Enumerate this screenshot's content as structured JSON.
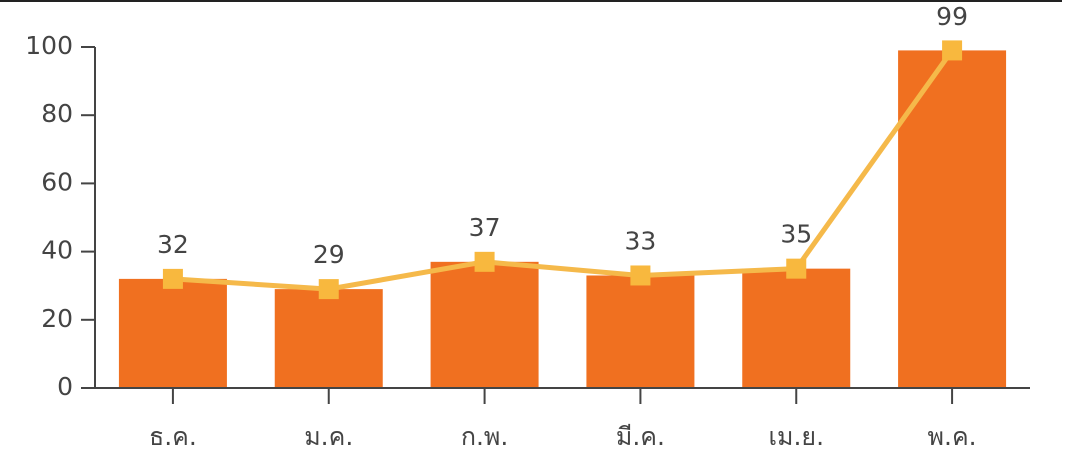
{
  "chart_data": {
    "type": "bar-line",
    "categories": [
      "ธ.ค.",
      "ม.ค.",
      "ก.พ.",
      "มี.ค.",
      "เม.ย.",
      "พ.ค."
    ],
    "series": [
      {
        "type": "bar",
        "color": "#f07020",
        "values": [
          32,
          29,
          37,
          33,
          35,
          99
        ]
      },
      {
        "type": "line",
        "color": "#f5b94a",
        "values": [
          32,
          29,
          37,
          33,
          35,
          99
        ]
      }
    ],
    "ylim": [
      0,
      100
    ],
    "yticks": [
      0,
      20,
      40,
      60,
      80,
      100
    ]
  }
}
